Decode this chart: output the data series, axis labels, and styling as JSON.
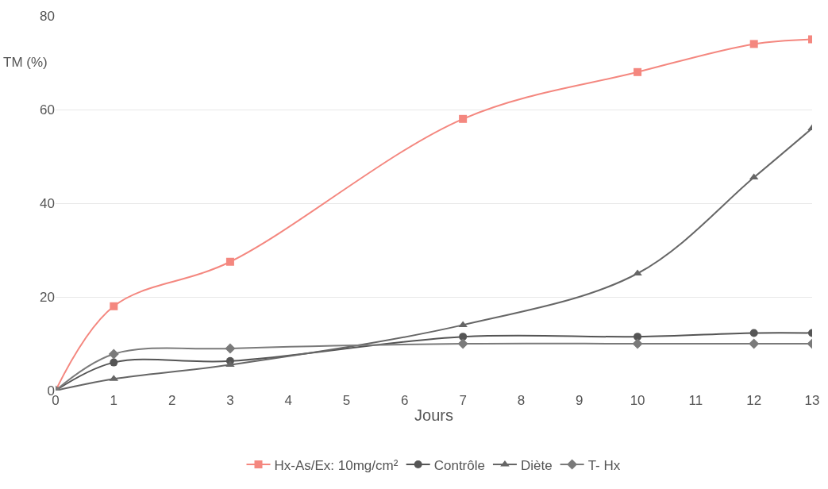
{
  "chart_data": {
    "type": "line",
    "xlabel": "Jours",
    "ylabel": "TM (%)",
    "x": [
      0,
      1,
      3,
      7,
      10,
      12,
      13
    ],
    "xlim": [
      0,
      13
    ],
    "xticks": [
      0,
      1,
      2,
      3,
      4,
      5,
      6,
      7,
      8,
      9,
      10,
      11,
      12,
      13
    ],
    "ylim": [
      0,
      80
    ],
    "yticks": [
      0,
      20,
      40,
      60,
      80
    ],
    "grid": "y",
    "legend": "bottom",
    "series": [
      {
        "name": "Hx-As/Ex: 10mg/cm²",
        "color": "#f4877f",
        "marker": "square",
        "values": [
          0,
          18,
          27.5,
          58,
          68,
          74,
          75
        ]
      },
      {
        "name": "Contrôle",
        "color": "#555555",
        "marker": "circle",
        "values": [
          0,
          6,
          6.3,
          11.5,
          11.5,
          12.3,
          12.3
        ]
      },
      {
        "name": "Diète",
        "color": "#666666",
        "marker": "triangle",
        "values": [
          0,
          2.5,
          5.5,
          14,
          25,
          45.5,
          56
        ]
      },
      {
        "name": "T- Hx",
        "color": "#7a7a7a",
        "marker": "diamond",
        "values": [
          0,
          7.8,
          9,
          10,
          10,
          10,
          10
        ]
      }
    ]
  }
}
